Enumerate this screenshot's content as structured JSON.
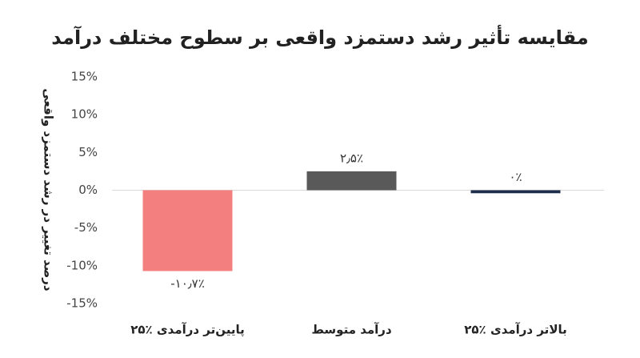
{
  "chart_data": {
    "type": "bar",
    "title": "مقایسه تأثیر رشد دستمزد واقعی بر سطوح مختلف درآمد",
    "y_label": "درصد تغییر در رشد دستمزد واقعی",
    "categories": [
      "۲۵٪ پایین‌تر درآمدی",
      "درآمد متوسط",
      "۲۵٪ بالاتر درآمدی"
    ],
    "values": [
      -10.7,
      2.5,
      -0.4
    ],
    "value_labels": [
      "-۱۰٫۷٪",
      "۲٫۵٪",
      "۰٪"
    ],
    "colors": [
      "#f47f7f",
      "#595959",
      "#1f2d4d"
    ],
    "ylim": [
      -15,
      15
    ],
    "yticks": [
      {
        "value": 15,
        "label": "15%"
      },
      {
        "value": 10,
        "label": "10%"
      },
      {
        "value": 5,
        "label": "5%"
      },
      {
        "value": 0,
        "label": "0%"
      },
      {
        "value": -5,
        "label": "-5%"
      },
      {
        "value": -10,
        "label": "-10%"
      },
      {
        "value": -15,
        "label": "-15%"
      }
    ],
    "grid": false
  }
}
